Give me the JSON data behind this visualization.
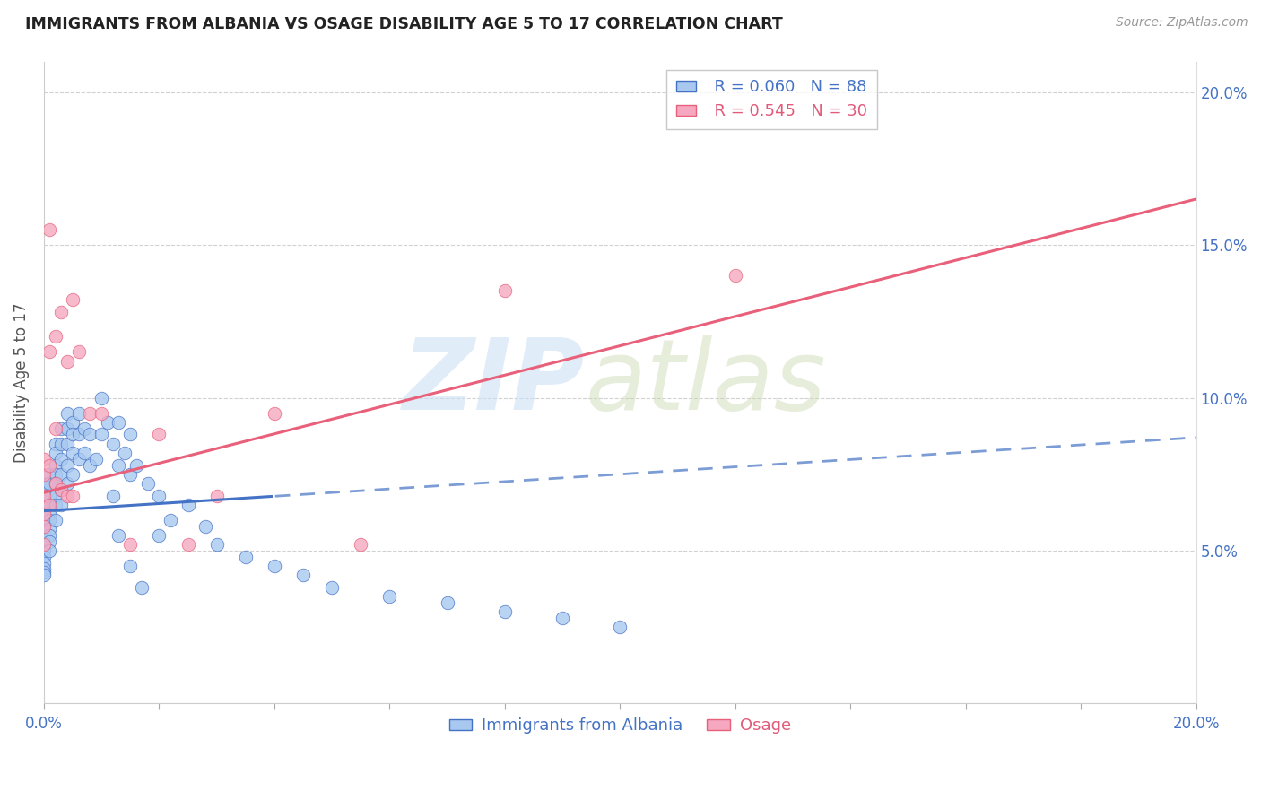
{
  "title": "IMMIGRANTS FROM ALBANIA VS OSAGE DISABILITY AGE 5 TO 17 CORRELATION CHART",
  "source": "Source: ZipAtlas.com",
  "ylabel": "Disability Age 5 to 17",
  "xlim": [
    0.0,
    0.2
  ],
  "ylim": [
    0.0,
    0.21
  ],
  "ytick_positions": [
    0.0,
    0.05,
    0.1,
    0.15,
    0.2
  ],
  "ytick_labels": [
    "",
    "5.0%",
    "10.0%",
    "15.0%",
    "20.0%"
  ],
  "xtick_positions": [
    0.0,
    0.02,
    0.04,
    0.06,
    0.08,
    0.1,
    0.12,
    0.14,
    0.16,
    0.18,
    0.2
  ],
  "xtick_labels": [
    "0.0%",
    "",
    "",
    "",
    "",
    "",
    "",
    "",
    "",
    "",
    "20.0%"
  ],
  "legend_albania_R": "0.060",
  "legend_albania_N": "88",
  "legend_osage_R": "0.545",
  "legend_osage_N": "30",
  "albania_color": "#a8c8f0",
  "osage_color": "#f5a8c0",
  "albania_line_color": "#4472c4",
  "osage_line_color": "#e8607a",
  "albania_line_solid_end": 0.04,
  "albania_regression_b": 0.063,
  "albania_regression_m": 0.12,
  "osage_regression_b": 0.069,
  "osage_regression_m": 0.48,
  "albania_x": [
    0.0,
    0.0,
    0.0,
    0.0,
    0.0,
    0.0,
    0.0,
    0.0,
    0.0,
    0.0,
    0.0,
    0.0,
    0.0,
    0.0,
    0.0,
    0.001,
    0.001,
    0.001,
    0.001,
    0.001,
    0.001,
    0.001,
    0.001,
    0.001,
    0.001,
    0.002,
    0.002,
    0.002,
    0.002,
    0.002,
    0.002,
    0.002,
    0.002,
    0.003,
    0.003,
    0.003,
    0.003,
    0.003,
    0.003,
    0.004,
    0.004,
    0.004,
    0.004,
    0.004,
    0.005,
    0.005,
    0.005,
    0.005,
    0.006,
    0.006,
    0.006,
    0.007,
    0.007,
    0.008,
    0.008,
    0.009,
    0.01,
    0.01,
    0.011,
    0.012,
    0.013,
    0.013,
    0.014,
    0.015,
    0.015,
    0.016,
    0.018,
    0.02,
    0.02,
    0.022,
    0.025,
    0.028,
    0.03,
    0.035,
    0.04,
    0.045,
    0.05,
    0.06,
    0.07,
    0.08,
    0.09,
    0.1,
    0.012,
    0.013,
    0.015,
    0.017
  ],
  "albania_y": [
    0.065,
    0.07,
    0.072,
    0.06,
    0.058,
    0.055,
    0.052,
    0.05,
    0.048,
    0.046,
    0.044,
    0.043,
    0.042,
    0.068,
    0.066,
    0.075,
    0.072,
    0.068,
    0.065,
    0.062,
    0.06,
    0.057,
    0.055,
    0.053,
    0.05,
    0.085,
    0.082,
    0.078,
    0.075,
    0.072,
    0.068,
    0.065,
    0.06,
    0.09,
    0.085,
    0.08,
    0.075,
    0.07,
    0.065,
    0.095,
    0.09,
    0.085,
    0.078,
    0.072,
    0.092,
    0.088,
    0.082,
    0.075,
    0.095,
    0.088,
    0.08,
    0.09,
    0.082,
    0.088,
    0.078,
    0.08,
    0.1,
    0.088,
    0.092,
    0.085,
    0.092,
    0.078,
    0.082,
    0.088,
    0.075,
    0.078,
    0.072,
    0.068,
    0.055,
    0.06,
    0.065,
    0.058,
    0.052,
    0.048,
    0.045,
    0.042,
    0.038,
    0.035,
    0.033,
    0.03,
    0.028,
    0.025,
    0.068,
    0.055,
    0.045,
    0.038
  ],
  "osage_x": [
    0.0,
    0.0,
    0.0,
    0.0,
    0.0,
    0.0,
    0.001,
    0.001,
    0.001,
    0.001,
    0.002,
    0.002,
    0.002,
    0.003,
    0.003,
    0.004,
    0.004,
    0.005,
    0.005,
    0.006,
    0.008,
    0.01,
    0.015,
    0.02,
    0.025,
    0.03,
    0.04,
    0.055,
    0.08,
    0.12
  ],
  "osage_y": [
    0.08,
    0.075,
    0.068,
    0.062,
    0.058,
    0.052,
    0.155,
    0.115,
    0.078,
    0.065,
    0.12,
    0.09,
    0.072,
    0.128,
    0.07,
    0.112,
    0.068,
    0.132,
    0.068,
    0.115,
    0.095,
    0.095,
    0.052,
    0.088,
    0.052,
    0.068,
    0.095,
    0.052,
    0.135,
    0.14
  ]
}
